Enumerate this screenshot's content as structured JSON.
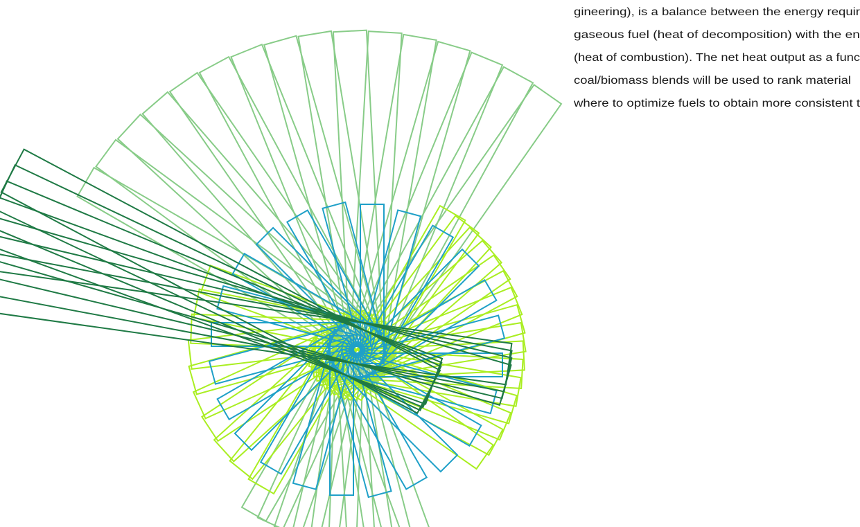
{
  "document": {
    "text_lines": [
      "gineering), is a balance between the energy requir",
      "gaseous fuel (heat of decomposition) with the en",
      "(heat of combustion). The net heat output as a func",
      "coal/biomass blends will be used to rank material",
      "where to optimize fuels to obtain more consistent t"
    ]
  }
}
